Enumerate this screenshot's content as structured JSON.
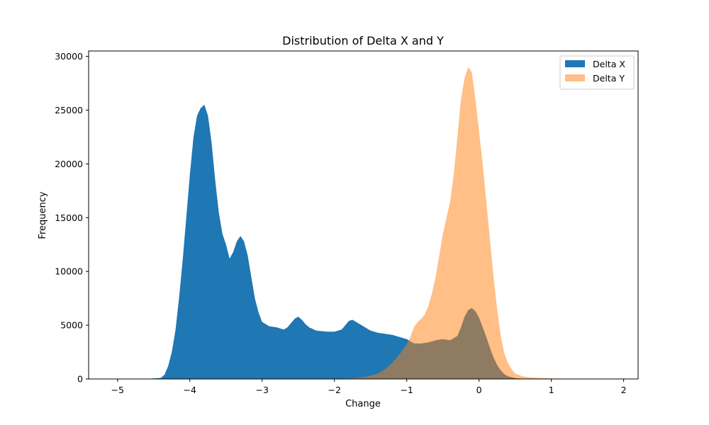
{
  "chart_data": {
    "type": "bar",
    "title": "Distribution of Delta X and Y",
    "xlabel": "Change",
    "ylabel": "Frequency",
    "xlim": [
      -5.4,
      2.2
    ],
    "ylim": [
      0,
      30500
    ],
    "xticks": [
      -5,
      -4,
      -3,
      -2,
      -1,
      0,
      1,
      2
    ],
    "yticks": [
      0,
      5000,
      10000,
      15000,
      20000,
      25000,
      30000
    ],
    "grid": false,
    "legend": "top-right",
    "series": [
      {
        "name": "Delta X",
        "color": "#1f77b4",
        "opacity": 1.0,
        "points": [
          [
            -5.0,
            0
          ],
          [
            -4.6,
            0
          ],
          [
            -4.4,
            100
          ],
          [
            -4.35,
            400
          ],
          [
            -4.3,
            1200
          ],
          [
            -4.25,
            2500
          ],
          [
            -4.2,
            4500
          ],
          [
            -4.15,
            7500
          ],
          [
            -4.1,
            11000
          ],
          [
            -4.05,
            15000
          ],
          [
            -4.0,
            19000
          ],
          [
            -3.95,
            22500
          ],
          [
            -3.9,
            24500
          ],
          [
            -3.85,
            25200
          ],
          [
            -3.8,
            25500
          ],
          [
            -3.75,
            24500
          ],
          [
            -3.7,
            22000
          ],
          [
            -3.65,
            18500
          ],
          [
            -3.6,
            15500
          ],
          [
            -3.55,
            13500
          ],
          [
            -3.5,
            12500
          ],
          [
            -3.45,
            11200
          ],
          [
            -3.4,
            11800
          ],
          [
            -3.35,
            12800
          ],
          [
            -3.3,
            13300
          ],
          [
            -3.25,
            12800
          ],
          [
            -3.2,
            11500
          ],
          [
            -3.15,
            9500
          ],
          [
            -3.1,
            7500
          ],
          [
            -3.05,
            6200
          ],
          [
            -3.0,
            5300
          ],
          [
            -2.9,
            4900
          ],
          [
            -2.8,
            4800
          ],
          [
            -2.7,
            4600
          ],
          [
            -2.65,
            4800
          ],
          [
            -2.6,
            5200
          ],
          [
            -2.55,
            5600
          ],
          [
            -2.5,
            5800
          ],
          [
            -2.45,
            5500
          ],
          [
            -2.4,
            5100
          ],
          [
            -2.35,
            4800
          ],
          [
            -2.25,
            4500
          ],
          [
            -2.1,
            4400
          ],
          [
            -2.0,
            4400
          ],
          [
            -1.9,
            4600
          ],
          [
            -1.85,
            5000
          ],
          [
            -1.8,
            5400
          ],
          [
            -1.75,
            5500
          ],
          [
            -1.7,
            5300
          ],
          [
            -1.6,
            4900
          ],
          [
            -1.5,
            4500
          ],
          [
            -1.4,
            4300
          ],
          [
            -1.3,
            4200
          ],
          [
            -1.2,
            4100
          ],
          [
            -1.1,
            3900
          ],
          [
            -1.0,
            3700
          ],
          [
            -0.9,
            3300
          ],
          [
            -0.8,
            3300
          ],
          [
            -0.7,
            3400
          ],
          [
            -0.6,
            3600
          ],
          [
            -0.5,
            3700
          ],
          [
            -0.4,
            3600
          ],
          [
            -0.3,
            4000
          ],
          [
            -0.25,
            4800
          ],
          [
            -0.2,
            5800
          ],
          [
            -0.15,
            6400
          ],
          [
            -0.1,
            6600
          ],
          [
            -0.05,
            6300
          ],
          [
            0.0,
            5700
          ],
          [
            0.05,
            4800
          ],
          [
            0.1,
            3900
          ],
          [
            0.15,
            2900
          ],
          [
            0.2,
            2000
          ],
          [
            0.25,
            1300
          ],
          [
            0.3,
            800
          ],
          [
            0.35,
            450
          ],
          [
            0.4,
            250
          ],
          [
            0.5,
            80
          ],
          [
            0.6,
            20
          ],
          [
            0.8,
            0
          ],
          [
            2.0,
            0
          ]
        ]
      },
      {
        "name": "Delta Y",
        "color": "#ff7f0e",
        "opacity": 0.5,
        "points": [
          [
            -5.0,
            0
          ],
          [
            -2.0,
            0
          ],
          [
            -1.8,
            50
          ],
          [
            -1.6,
            150
          ],
          [
            -1.5,
            300
          ],
          [
            -1.4,
            500
          ],
          [
            -1.3,
            900
          ],
          [
            -1.2,
            1500
          ],
          [
            -1.1,
            2300
          ],
          [
            -1.0,
            3200
          ],
          [
            -0.95,
            3900
          ],
          [
            -0.9,
            4800
          ],
          [
            -0.85,
            5300
          ],
          [
            -0.8,
            5600
          ],
          [
            -0.75,
            6000
          ],
          [
            -0.7,
            6800
          ],
          [
            -0.65,
            8000
          ],
          [
            -0.6,
            9500
          ],
          [
            -0.55,
            11500
          ],
          [
            -0.5,
            13500
          ],
          [
            -0.45,
            15000
          ],
          [
            -0.4,
            16500
          ],
          [
            -0.35,
            19000
          ],
          [
            -0.3,
            22500
          ],
          [
            -0.25,
            26000
          ],
          [
            -0.2,
            28000
          ],
          [
            -0.15,
            29000
          ],
          [
            -0.1,
            28500
          ],
          [
            -0.05,
            26000
          ],
          [
            0.0,
            23000
          ],
          [
            0.05,
            20000
          ],
          [
            0.1,
            16500
          ],
          [
            0.15,
            13000
          ],
          [
            0.2,
            9500
          ],
          [
            0.25,
            6500
          ],
          [
            0.3,
            4000
          ],
          [
            0.35,
            2400
          ],
          [
            0.4,
            1500
          ],
          [
            0.45,
            900
          ],
          [
            0.5,
            500
          ],
          [
            0.6,
            250
          ],
          [
            0.7,
            150
          ],
          [
            0.85,
            100
          ],
          [
            1.0,
            60
          ],
          [
            1.1,
            20
          ],
          [
            1.3,
            0
          ],
          [
            2.0,
            0
          ]
        ]
      }
    ]
  }
}
